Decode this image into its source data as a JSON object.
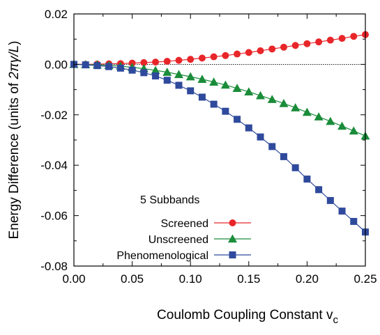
{
  "chart_data": {
    "type": "line",
    "title": "",
    "xlabel": "Coulomb Coupling Constant  v",
    "xlabel_subscript": "c",
    "ylabel_prefix": "Energy Difference  (units of ",
    "ylabel_math": "2πγ/L",
    "ylabel_suffix": ")",
    "xlim": [
      0,
      0.25
    ],
    "ylim": [
      -0.08,
      0.02
    ],
    "xticks": [
      0.0,
      0.05,
      0.1,
      0.15,
      0.2,
      0.25
    ],
    "xtick_labels": [
      "0.00",
      "0.05",
      "0.10",
      "0.15",
      "0.20",
      "0.25"
    ],
    "yticks": [
      -0.08,
      -0.06,
      -0.04,
      -0.02,
      0.0,
      0.02
    ],
    "ytick_labels": [
      "-0.08",
      "-0.06",
      "-0.04",
      "-0.02",
      "0.00",
      "0.02"
    ],
    "grid": false,
    "reference_line_y": 0,
    "legend_title": "5 Subbands",
    "legend_position": "bottom-left",
    "x": [
      0.0,
      0.01,
      0.02,
      0.03,
      0.04,
      0.05,
      0.06,
      0.07,
      0.08,
      0.09,
      0.1,
      0.11,
      0.12,
      0.13,
      0.14,
      0.15,
      0.16,
      0.17,
      0.18,
      0.19,
      0.2,
      0.21,
      0.22,
      0.23,
      0.24,
      0.25
    ],
    "series": [
      {
        "name": "Screened",
        "marker": "circle",
        "color": "#e8262a",
        "values": [
          0.0,
          0.0,
          0.0001,
          0.0002,
          0.0003,
          0.0005,
          0.0007,
          0.0009,
          0.0012,
          0.0016,
          0.002,
          0.0025,
          0.003,
          0.0035,
          0.0041,
          0.0047,
          0.0054,
          0.0061,
          0.0068,
          0.0075,
          0.0082,
          0.0089,
          0.0096,
          0.0103,
          0.0111,
          0.0118
        ]
      },
      {
        "name": "Unscreened",
        "marker": "triangle",
        "color": "#1a8c3a",
        "values": [
          0.0,
          -0.0001,
          -0.0002,
          -0.0004,
          -0.0007,
          -0.0012,
          -0.0017,
          -0.0024,
          -0.0031,
          -0.004,
          -0.0049,
          -0.0059,
          -0.007,
          -0.0082,
          -0.0095,
          -0.0109,
          -0.0124,
          -0.0139,
          -0.0155,
          -0.0172,
          -0.019,
          -0.0208,
          -0.0226,
          -0.0245,
          -0.0264,
          -0.0284
        ]
      },
      {
        "name": "Phenomenological",
        "marker": "square",
        "color": "#2f4a9c",
        "values": [
          0.0,
          -0.0002,
          -0.0005,
          -0.0009,
          -0.0015,
          -0.0023,
          -0.0033,
          -0.0046,
          -0.0063,
          -0.0083,
          -0.0105,
          -0.013,
          -0.0158,
          -0.0186,
          -0.0218,
          -0.0252,
          -0.0288,
          -0.0326,
          -0.0366,
          -0.041,
          -0.0455,
          -0.0497,
          -0.054,
          -0.0582,
          -0.0623,
          -0.0665
        ]
      }
    ]
  }
}
